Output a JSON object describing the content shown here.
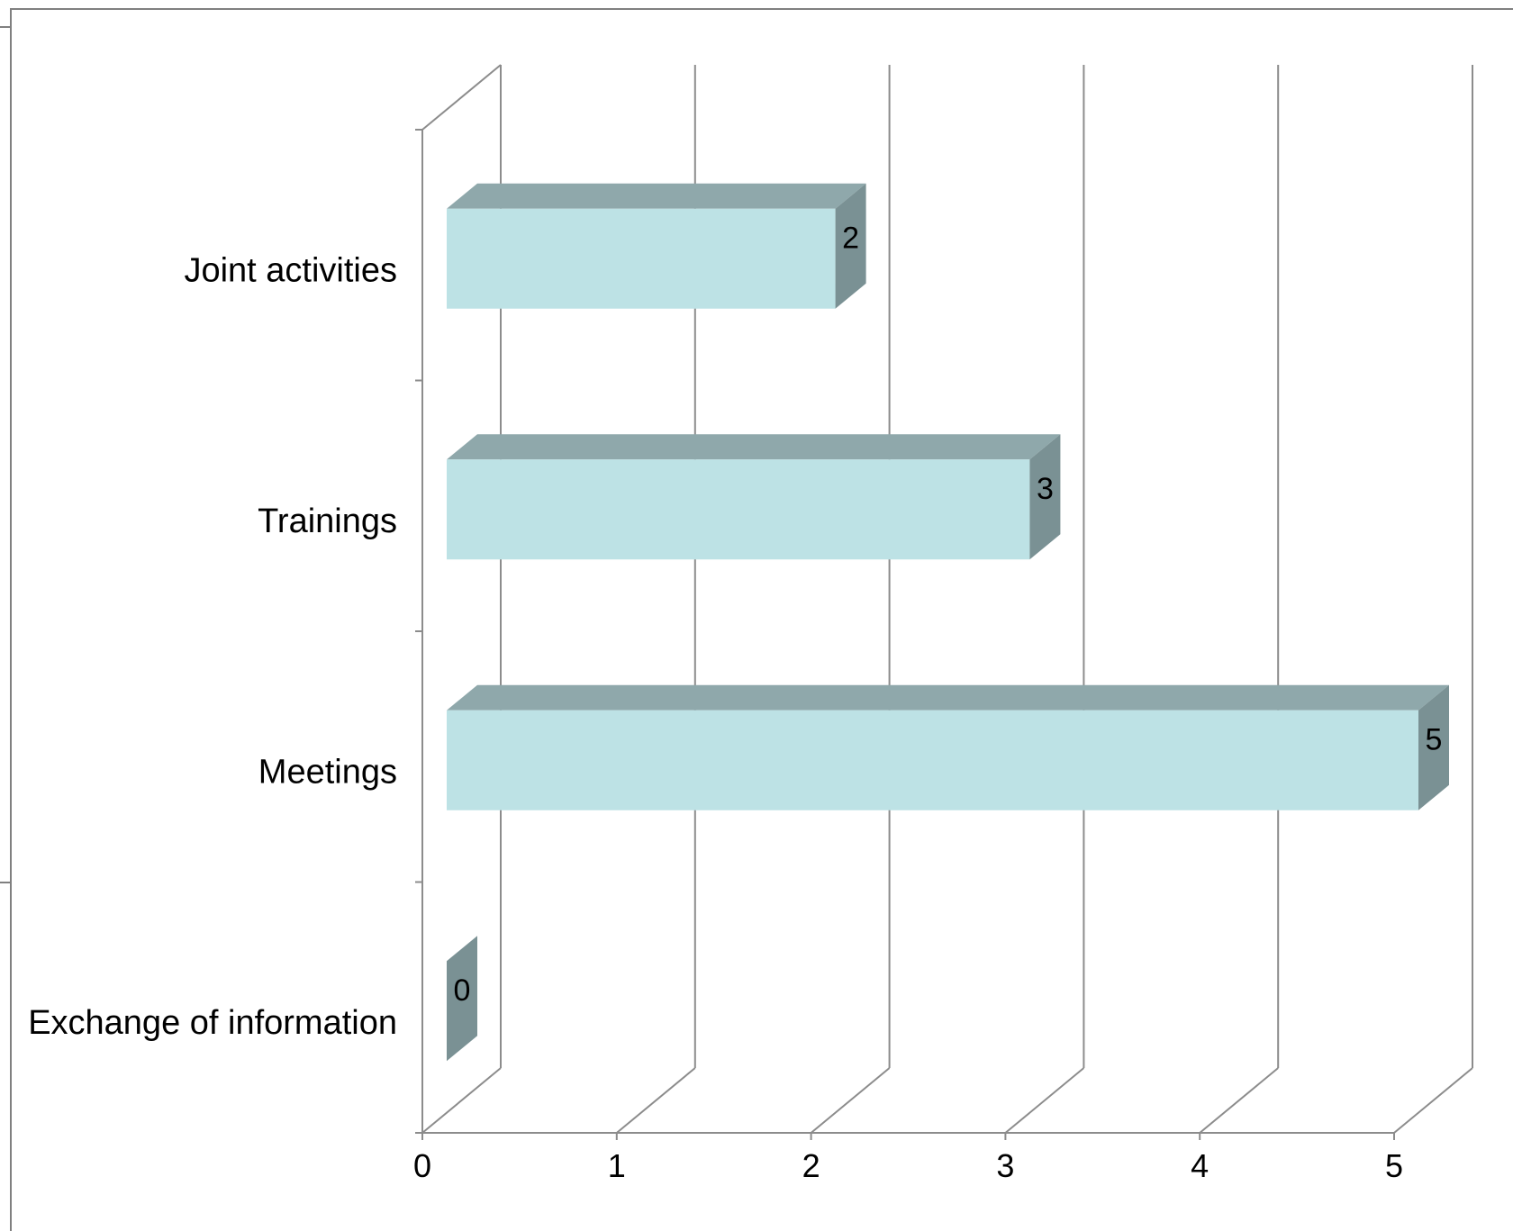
{
  "chart_data": {
    "type": "bar",
    "orientation": "horizontal",
    "style": "3d",
    "categories": [
      "Exchange of information",
      "Meetings",
      "Trainings",
      "Joint activities"
    ],
    "values": [
      0,
      5,
      3,
      2
    ],
    "xlim": [
      0,
      5
    ],
    "x_ticks": [
      "0",
      "1",
      "2",
      "3",
      "4",
      "5"
    ],
    "data_labels": [
      "0",
      "5",
      "3",
      "2"
    ],
    "title": "",
    "xlabel": "",
    "ylabel": "",
    "grid": true,
    "legend": "none",
    "colors": {
      "bar_front": "#bde2e5",
      "bar_top": "#8fa8ab",
      "bar_side": "#7a9194",
      "axis": "#8c8c8c",
      "gridline": "#8c8c8c",
      "frame": "#808080"
    }
  }
}
